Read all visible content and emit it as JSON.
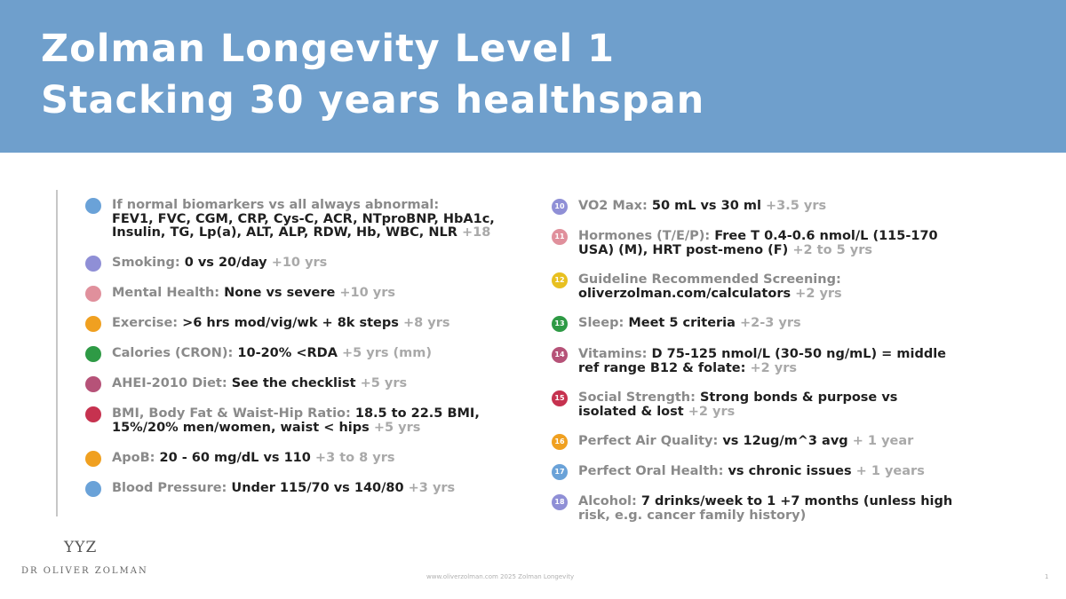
{
  "title": {
    "line1": "Zolman Longevity Level 1",
    "line2": "Stacking 30 years healthspan"
  },
  "items_left": [
    {
      "badge": "",
      "badge_color": "#6aa2d8",
      "label": "If normal biomarkers vs all always abnormal:",
      "lines": [
        "FEV1, FVC, CGM, CRP, Cys-C, ACR, NTproBNP, HbA1c,",
        "Insulin, TG, Lp(a), ALT, ALP, RDW, Hb, WBC, NLR"
      ],
      "gain": "+18"
    },
    {
      "badge": "",
      "badge_color": "#8f8fd6",
      "label": "Smoking:",
      "text": "0 vs 20/day",
      "gain": "+10 yrs"
    },
    {
      "badge": "",
      "badge_color": "#e0909c",
      "label": "Mental Health:",
      "text": "None vs severe",
      "gain": "+10 yrs"
    },
    {
      "badge": "",
      "badge_color": "#f0a020",
      "label": "Exercise:",
      "text": ">6 hrs mod/vig/wk + 8k steps",
      "gain": "+8 yrs"
    },
    {
      "badge": "",
      "badge_color": "#2e9a45",
      "label": "Calories (CRON):",
      "text": "10-20% <RDA",
      "gain": "+5 yrs (mm)"
    },
    {
      "badge": "",
      "badge_color": "#b65278",
      "label": "AHEI-2010 Diet:",
      "text": "See the checklist",
      "gain": "+5 yrs"
    },
    {
      "badge": "",
      "badge_color": "#c6324f",
      "label": "BMI, Body Fat & Waist-Hip Ratio:",
      "lines": [
        "18.5 to 22.5 BMI,",
        "15%/20% men/women, waist < hips"
      ],
      "gain": "+5 yrs"
    },
    {
      "badge": "",
      "badge_color": "#f0a020",
      "label": "ApoB:",
      "text": "20 - 60 mg/dL vs 110",
      "gain": "+3 to 8 yrs"
    },
    {
      "badge": "",
      "badge_color": "#6aa2d8",
      "label": "Blood Pressure:",
      "text": "Under 115/70 vs 140/80",
      "gain": "+3 yrs"
    }
  ],
  "items_right": [
    {
      "badge": "10",
      "badge_color": "#8f8fd6",
      "label": "VO2 Max:",
      "text": "50 mL vs 30 ml",
      "gain": "+3.5 yrs"
    },
    {
      "badge": "11",
      "badge_color": "#e0909c",
      "label": "Hormones (T/E/P):",
      "lines": [
        "Free T 0.4-0.6 nmol/L (115-170",
        "USA) (M), HRT post-meno (F)"
      ],
      "gain": "+2 to 5 yrs"
    },
    {
      "badge": "12",
      "badge_color": "#e8c020",
      "label": "Guideline Recommended Screening:",
      "lines": [
        "",
        "oliverzolman.com/calculators"
      ],
      "gain": "+2 yrs"
    },
    {
      "badge": "13",
      "badge_color": "#2e9a45",
      "label": "Sleep:",
      "text": "Meet 5 criteria",
      "gain": "+2-3 yrs"
    },
    {
      "badge": "14",
      "badge_color": "#b65278",
      "label": "Vitamins:",
      "lines": [
        "D 75-125 nmol/L (30-50 ng/mL) = middle",
        "ref range B12 & folate:"
      ],
      "gain": "+2 yrs"
    },
    {
      "badge": "15",
      "badge_color": "#c6324f",
      "label": "Social Strength:",
      "lines": [
        "Strong bonds & purpose vs",
        "isolated & lost"
      ],
      "gain": "+2 yrs"
    },
    {
      "badge": "16",
      "badge_color": "#f0a020",
      "label": "Perfect Air Quality:",
      "text": "vs 12ug/m^3 avg",
      "gain": "+ 1 year"
    },
    {
      "badge": "17",
      "badge_color": "#6aa2d8",
      "label": "Perfect Oral Health:",
      "text": "vs chronic issues",
      "gain": "+ 1 years"
    },
    {
      "badge": "18",
      "badge_color": "#8f8fd6",
      "label": "Alcohol:",
      "lines": [
        "7 drinks/week to 1 +7 months (unless high",
        "risk, e.g. cancer family history)"
      ],
      "gain": ""
    }
  ],
  "logo": {
    "mark": "YYZ",
    "name": "DR OLIVER ZOLMAN"
  },
  "footer": {
    "text": "www.oliverzolman.com 2025 Zolman Longevity",
    "page": "1"
  }
}
